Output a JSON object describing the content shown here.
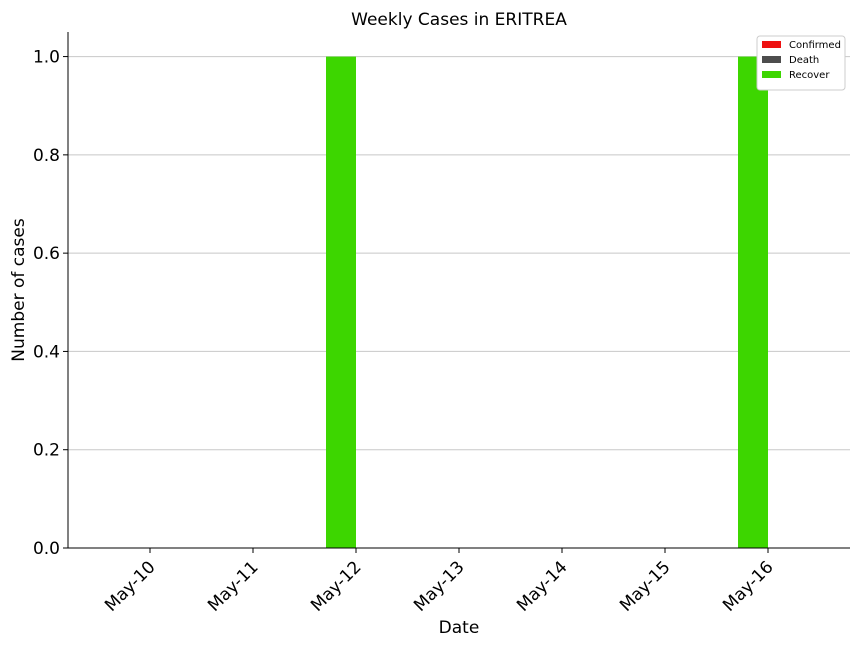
{
  "chart_data": {
    "type": "bar",
    "title": "Weekly Cases in ERITREA",
    "xlabel": "Date",
    "ylabel": "Number of cases",
    "categories": [
      "May-10",
      "May-11",
      "May-12",
      "May-13",
      "May-14",
      "May-15",
      "May-16"
    ],
    "series": [
      {
        "name": "Confirmed",
        "color": "#ee1111",
        "values": [
          0,
          0,
          0,
          0,
          0,
          0,
          0
        ]
      },
      {
        "name": "Death",
        "color": "#4d4d4d",
        "values": [
          0,
          0,
          0,
          0,
          0,
          0,
          0
        ]
      },
      {
        "name": "Recover",
        "color": "#3dd600",
        "values": [
          0,
          0,
          1,
          0,
          0,
          0,
          1
        ]
      }
    ],
    "ylim": [
      0,
      1.05
    ],
    "yticks": [
      "0.0",
      "0.2",
      "0.4",
      "0.6",
      "0.8",
      "1.0"
    ],
    "grid": "horizontal",
    "legend_position": "top-right"
  }
}
